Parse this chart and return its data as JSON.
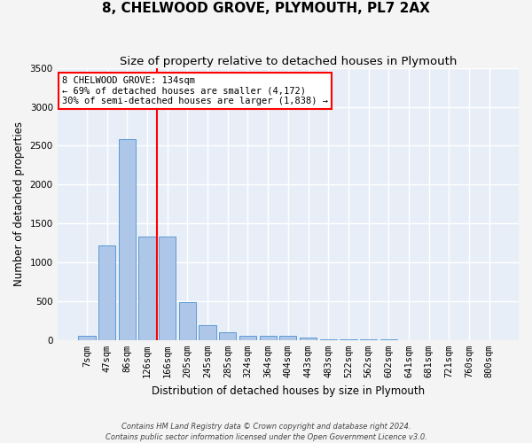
{
  "title": "8, CHELWOOD GROVE, PLYMOUTH, PL7 2AX",
  "subtitle": "Size of property relative to detached houses in Plymouth",
  "xlabel": "Distribution of detached houses by size in Plymouth",
  "ylabel": "Number of detached properties",
  "categories": [
    "7sqm",
    "47sqm",
    "86sqm",
    "126sqm",
    "166sqm",
    "205sqm",
    "245sqm",
    "285sqm",
    "324sqm",
    "364sqm",
    "404sqm",
    "443sqm",
    "483sqm",
    "522sqm",
    "562sqm",
    "602sqm",
    "641sqm",
    "681sqm",
    "721sqm",
    "760sqm",
    "800sqm"
  ],
  "values": [
    60,
    1220,
    2580,
    1330,
    1330,
    490,
    190,
    100,
    55,
    55,
    55,
    30,
    10,
    5,
    5,
    5,
    2,
    2,
    2,
    2,
    2
  ],
  "bar_color": "#aec6e8",
  "bar_edgecolor": "#5b9bd5",
  "red_line_x": 3.5,
  "annotation_text": "8 CHELWOOD GROVE: 134sqm\n← 69% of detached houses are smaller (4,172)\n30% of semi-detached houses are larger (1,838) →",
  "footer1": "Contains HM Land Registry data © Crown copyright and database right 2024.",
  "footer2": "Contains public sector information licensed under the Open Government Licence v3.0.",
  "ylim": [
    0,
    3500
  ],
  "yticks": [
    0,
    500,
    1000,
    1500,
    2000,
    2500,
    3000,
    3500
  ],
  "background_color": "#e8eef8",
  "grid_color": "#ffffff",
  "fig_background": "#f4f4f4",
  "title_fontsize": 11,
  "subtitle_fontsize": 9.5,
  "axis_label_fontsize": 8.5,
  "tick_fontsize": 7.5,
  "annotation_fontsize": 7.5
}
